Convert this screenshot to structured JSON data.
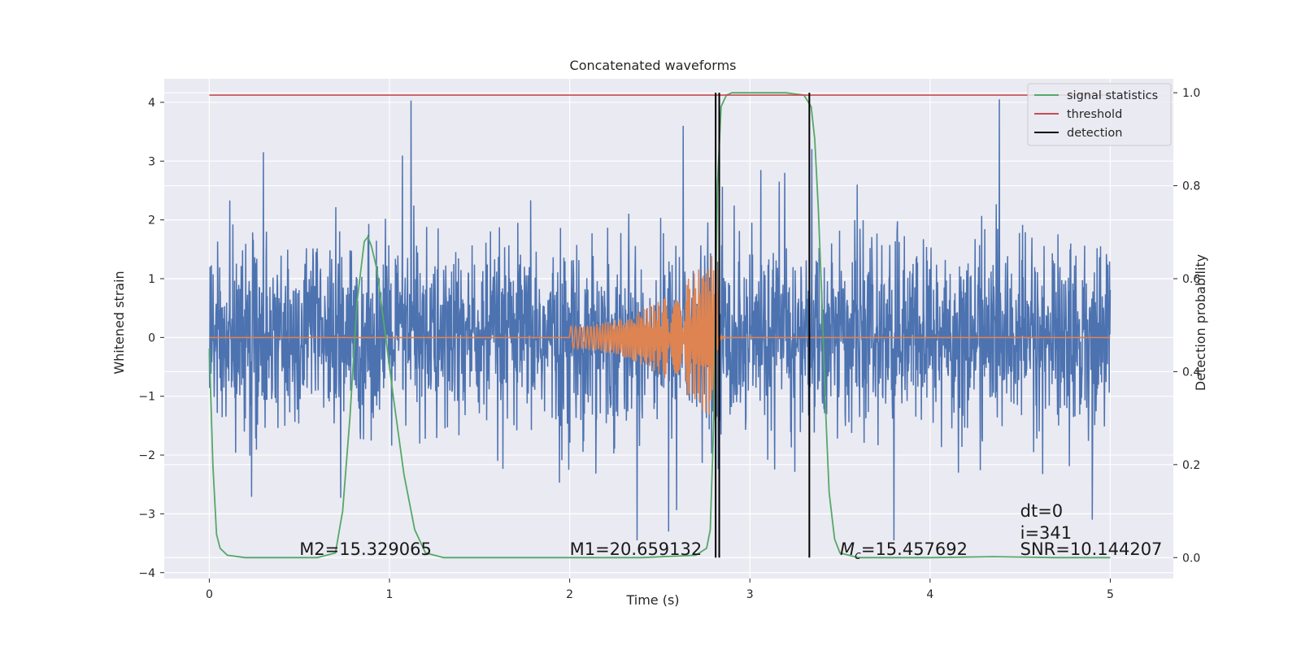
{
  "chart_data": {
    "type": "line",
    "title": "Concatenated waveforms",
    "xlabel": "Time (s)",
    "ylabel": "Whitened strain",
    "ylabel_right": "Detection probability",
    "xlim": [
      -0.25,
      5.35
    ],
    "ylim": [
      -4.1,
      4.4
    ],
    "ylim_right": [
      -0.045,
      1.03
    ],
    "x_ticks": [
      0,
      1,
      2,
      3,
      4,
      5
    ],
    "y_ticks": [
      -4,
      -3,
      -2,
      -1,
      0,
      1,
      2,
      3,
      4
    ],
    "y_ticks_right": [
      0.0,
      0.2,
      0.4,
      0.6,
      0.8,
      1.0
    ],
    "y_tick_labels": [
      "−4",
      "−3",
      "−2",
      "−1",
      "0",
      "1",
      "2",
      "3",
      "4"
    ],
    "y_tick_labels_right": [
      "0.0",
      "0.2",
      "0.4",
      "0.6",
      "0.8",
      "1.0"
    ],
    "grid": true,
    "legend_position": "top-right",
    "series": [
      {
        "name": "",
        "axis": "left",
        "color": "#4c72b0",
        "x_range": [
          0,
          5
        ],
        "typical_amplitude": 1.2,
        "peak_values": [
          {
            "x": 1.12,
            "y": 4.03
          },
          {
            "x": 0.3,
            "y": 3.15
          },
          {
            "x": 2.63,
            "y": 3.6
          },
          {
            "x": 2.55,
            "y": -3.3
          },
          {
            "x": 3.8,
            "y": -3.5
          },
          {
            "x": 4.9,
            "y": -3.1
          }
        ]
      },
      {
        "name": "",
        "axis": "left",
        "color": "#dd8452",
        "chirp_start": 2.0,
        "chirp_end": 2.82,
        "amplitude_start": 0.2,
        "amplitude_end": 1.5
      },
      {
        "name": "signal statistics",
        "axis": "right",
        "color": "#55a868",
        "x": [
          0.0,
          0.02,
          0.04,
          0.06,
          0.1,
          0.2,
          0.4,
          0.6,
          0.7,
          0.74,
          0.78,
          0.82,
          0.86,
          0.88,
          0.9,
          0.93,
          0.97,
          1.02,
          1.08,
          1.14,
          1.2,
          1.3,
          1.6,
          2.0,
          2.4,
          2.7,
          2.76,
          2.78,
          2.8,
          2.82,
          2.84,
          2.87,
          2.9,
          3.0,
          3.2,
          3.3,
          3.34,
          3.36,
          3.38,
          3.4,
          3.42,
          3.44,
          3.47,
          3.5,
          3.6,
          4.0,
          4.35,
          4.7,
          5.0
        ],
        "values": [
          0.45,
          0.2,
          0.05,
          0.02,
          0.005,
          0.0,
          0.0,
          0.0,
          0.01,
          0.1,
          0.3,
          0.55,
          0.68,
          0.69,
          0.67,
          0.62,
          0.5,
          0.35,
          0.18,
          0.06,
          0.01,
          0.0,
          0.0,
          0.0,
          0.0,
          0.005,
          0.02,
          0.06,
          0.3,
          0.8,
          0.97,
          0.995,
          1.0,
          1.0,
          1.0,
          0.995,
          0.97,
          0.9,
          0.75,
          0.55,
          0.32,
          0.14,
          0.04,
          0.01,
          0.0,
          0.0,
          0.002,
          0.0,
          0.0
        ]
      },
      {
        "name": "threshold",
        "axis": "right",
        "color": "#c44e52",
        "x": [
          0,
          5
        ],
        "values": [
          0.995,
          0.995
        ]
      },
      {
        "name": "detection",
        "axis": "right",
        "color": "#000000",
        "type": "vlines",
        "x": [
          2.81,
          2.83,
          3.33
        ]
      }
    ],
    "annotations": [
      {
        "text": "M2=15.329065",
        "x": 0.5,
        "y": -3.7
      },
      {
        "text": "M1=20.659132",
        "x": 2.0,
        "y": -3.7
      },
      {
        "text_mc": "M",
        "text_sub": "c",
        "text_rest": "=15.457692",
        "x": 3.5,
        "y": -3.7
      },
      {
        "text": "dt=0",
        "x": 4.5,
        "y": -3.05
      },
      {
        "text": "i=341",
        "x": 4.5,
        "y": -3.42
      },
      {
        "text": "SNR=10.144207",
        "x": 4.5,
        "y": -3.7
      }
    ],
    "colors": {
      "background": "#eaeaf2",
      "grid": "#ffffff",
      "text": "#262626"
    }
  }
}
